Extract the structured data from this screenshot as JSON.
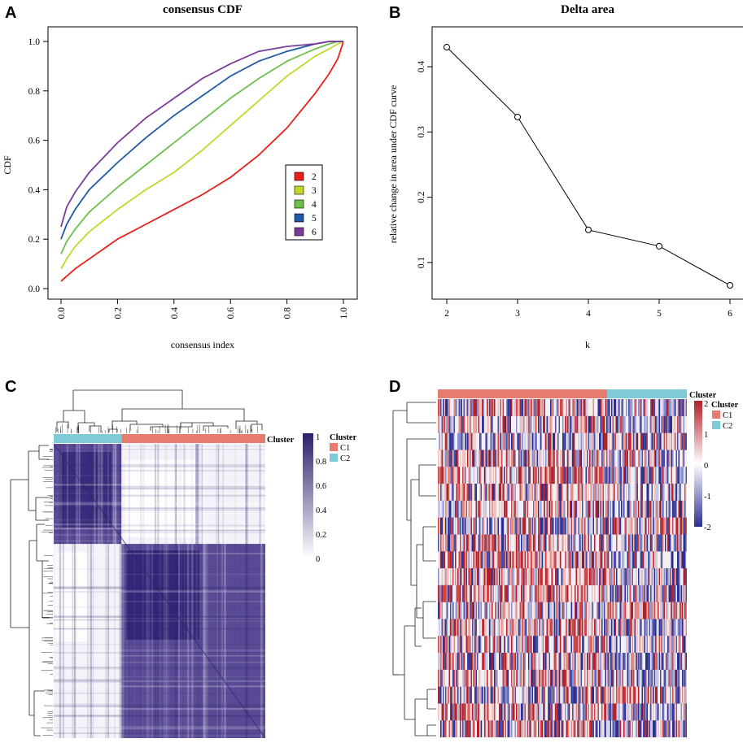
{
  "panels": {
    "a": "A",
    "b": "B",
    "c": "C",
    "d": "D"
  },
  "chart_data": [
    {
      "panel": "A",
      "type": "line",
      "title": "consensus CDF",
      "xlabel": "consensus index",
      "ylabel": "CDF",
      "xlim": [
        0,
        1
      ],
      "ylim": [
        0,
        1
      ],
      "xticks": [
        "0.0",
        "0.2",
        "0.4",
        "0.6",
        "0.8",
        "1.0"
      ],
      "yticks": [
        "0.0",
        "0.2",
        "0.4",
        "0.6",
        "0.8",
        "1.0"
      ],
      "legend_position": "middle-right",
      "x": [
        0,
        0.02,
        0.05,
        0.1,
        0.2,
        0.3,
        0.4,
        0.5,
        0.6,
        0.7,
        0.8,
        0.9,
        0.95,
        0.98,
        1.0
      ],
      "series": [
        {
          "name": "2",
          "color": "#e8201a",
          "values": [
            0.03,
            0.05,
            0.08,
            0.12,
            0.2,
            0.26,
            0.32,
            0.38,
            0.45,
            0.54,
            0.65,
            0.79,
            0.87,
            0.93,
            1.0
          ]
        },
        {
          "name": "3",
          "color": "#c3d629",
          "values": [
            0.08,
            0.12,
            0.17,
            0.23,
            0.32,
            0.4,
            0.47,
            0.56,
            0.66,
            0.76,
            0.86,
            0.94,
            0.97,
            0.99,
            1.0
          ]
        },
        {
          "name": "4",
          "color": "#6cbf4b",
          "values": [
            0.14,
            0.19,
            0.24,
            0.31,
            0.41,
            0.5,
            0.59,
            0.68,
            0.77,
            0.85,
            0.92,
            0.97,
            0.99,
            1.0,
            1.0
          ]
        },
        {
          "name": "5",
          "color": "#1f5aa6",
          "values": [
            0.2,
            0.26,
            0.32,
            0.4,
            0.51,
            0.61,
            0.7,
            0.78,
            0.86,
            0.92,
            0.96,
            0.99,
            1.0,
            1.0,
            1.0
          ]
        },
        {
          "name": "6",
          "color": "#7a3c9a",
          "values": [
            0.25,
            0.33,
            0.39,
            0.47,
            0.59,
            0.69,
            0.77,
            0.85,
            0.91,
            0.96,
            0.98,
            0.99,
            1.0,
            1.0,
            1.0
          ]
        }
      ]
    },
    {
      "panel": "B",
      "type": "line",
      "title": "Delta area",
      "xlabel": "k",
      "ylabel": "relative change in area under CDF curve",
      "xlim": [
        2,
        6
      ],
      "ylim": [
        0.06,
        0.44
      ],
      "xticks": [
        "2",
        "3",
        "4",
        "5",
        "6"
      ],
      "yticks": [
        "0.1",
        "0.2",
        "0.3",
        "0.4"
      ],
      "x": [
        2,
        3,
        4,
        5,
        6
      ],
      "values": [
        0.43,
        0.323,
        0.15,
        0.125,
        0.065
      ]
    },
    {
      "panel": "C",
      "type": "heatmap",
      "legend_title": "Cluster",
      "clusters": [
        {
          "name": "C1",
          "color": "#e57c6f"
        },
        {
          "name": "C2",
          "color": "#7ecad6"
        }
      ],
      "colorbar_ticks": [
        "1",
        "0.8",
        "0.6",
        "0.4",
        "0.2",
        "0"
      ],
      "colorbar_low": "#ffffff",
      "colorbar_high": "#2d2069",
      "column_annotation_label": "Cluster",
      "blocks": [
        {
          "cluster": "C2",
          "fraction": 0.32
        },
        {
          "cluster": "C1",
          "fraction": 0.68
        }
      ]
    },
    {
      "panel": "D",
      "type": "heatmap",
      "legend_title": "Cluster",
      "clusters": [
        {
          "name": "C1",
          "color": "#e57c6f"
        },
        {
          "name": "C2",
          "color": "#7ecad6"
        }
      ],
      "colorbar_ticks": [
        "2",
        "1",
        "0",
        "-1",
        "-2"
      ],
      "colorbar_low": "#2b2f8f",
      "colorbar_mid": "#ffffff",
      "colorbar_high": "#b2202a",
      "column_annotation_label": "Cluster",
      "rows": 20,
      "blocks": [
        {
          "cluster": "C1",
          "fraction": 0.68
        },
        {
          "cluster": "C2",
          "fraction": 0.32
        }
      ]
    }
  ]
}
